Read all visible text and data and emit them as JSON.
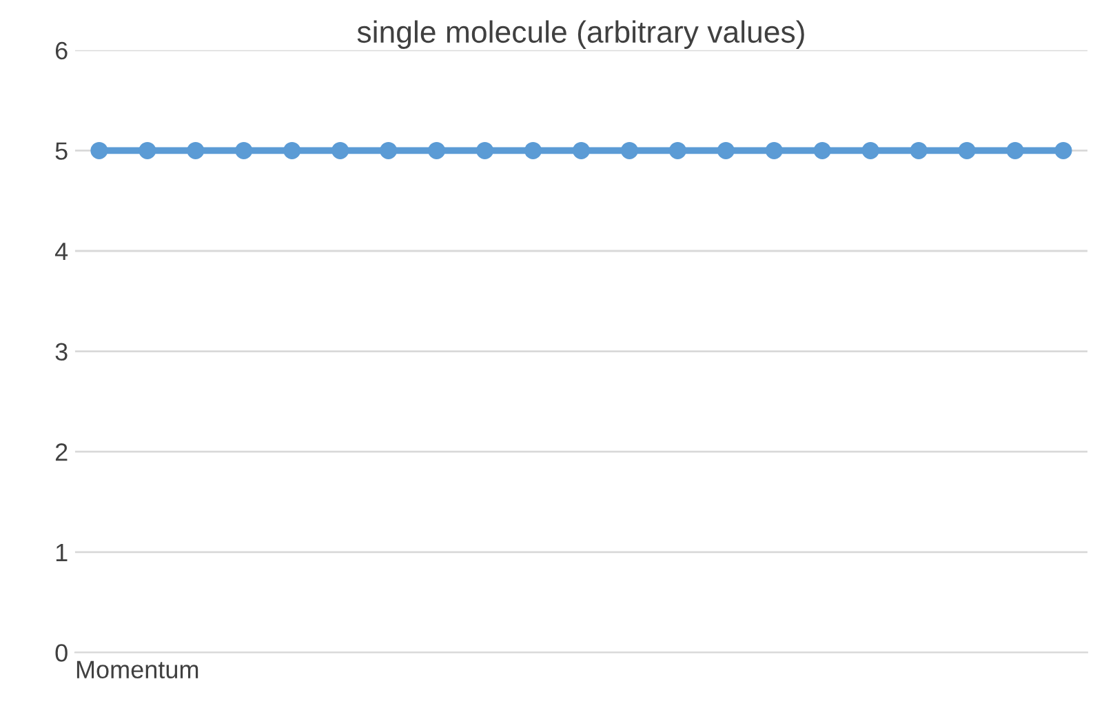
{
  "chart_data": {
    "type": "line",
    "title": "single molecule (arbitrary values)",
    "xlabel": "Momentum",
    "categories": [
      null,
      null,
      null,
      null,
      null,
      null,
      null,
      null,
      null,
      null,
      null,
      null,
      null,
      null,
      null,
      null,
      null,
      null,
      null,
      null,
      null
    ],
    "series": [
      {
        "color": "#5b9bd5",
        "values": [
          5,
          5,
          5,
          5,
          5,
          5,
          5,
          5,
          5,
          5,
          5,
          5,
          5,
          5,
          5,
          5,
          5,
          5,
          5,
          5,
          5
        ]
      }
    ],
    "ylim": [
      0,
      6
    ],
    "yticks": [
      0,
      1,
      2,
      3,
      4,
      5,
      6
    ],
    "grid": "y",
    "marker": "circle",
    "line_style": "solid",
    "tick_labels": "y"
  }
}
